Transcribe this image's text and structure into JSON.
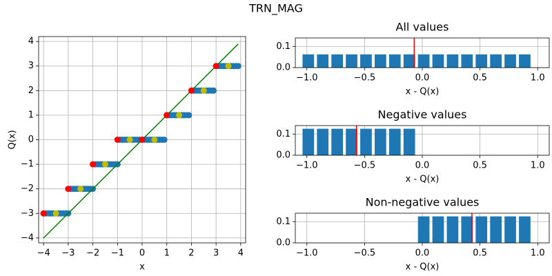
{
  "title": "TRN_MAG",
  "chart_data": [
    {
      "type": "scatter",
      "xlabel": "x",
      "ylabel": "Q(x)",
      "grid": true,
      "xlim": [
        -4.2,
        4.2
      ],
      "ylim": [
        -4.2,
        4.2
      ],
      "xticks": [
        {
          "value": -4,
          "label": "−4"
        },
        {
          "value": -3,
          "label": "−3"
        },
        {
          "value": -2,
          "label": "−2"
        },
        {
          "value": -1,
          "label": "−1"
        },
        0,
        1,
        2,
        3,
        4
      ],
      "yticks": [
        {
          "value": -4,
          "label": "−4"
        },
        {
          "value": -3,
          "label": "−3"
        },
        {
          "value": -2,
          "label": "−2"
        },
        {
          "value": -1,
          "label": "−1"
        },
        0,
        1,
        2,
        3,
        4
      ],
      "series": [
        {
          "style": "marker",
          "color": "#1f77b4",
          "x": [
            -4.0,
            -3.9,
            -3.8,
            -3.7,
            -3.6,
            -3.5,
            -3.4,
            -3.3,
            -3.2,
            -3.1,
            -3.0,
            -2.9,
            -2.8,
            -2.7,
            -2.6,
            -2.5,
            -2.4,
            -2.3,
            -2.2,
            -2.1,
            -2.0,
            -1.9,
            -1.8,
            -1.7,
            -1.6,
            -1.5,
            -1.4,
            -1.3,
            -1.2,
            -1.1,
            -1.0,
            -0.9,
            -0.8,
            -0.7,
            -0.6,
            -0.5,
            -0.4,
            -0.3,
            -0.2,
            -0.1,
            0.0,
            0.1,
            0.2,
            0.3,
            0.4,
            0.5,
            0.6,
            0.7,
            0.8,
            0.9,
            1.0,
            1.1,
            1.2,
            1.3,
            1.4,
            1.5,
            1.6,
            1.7,
            1.8,
            1.9,
            2.0,
            2.1,
            2.2,
            2.3,
            2.4,
            2.5,
            2.6,
            2.7,
            2.8,
            2.9,
            3.0,
            3.1,
            3.2,
            3.3,
            3.4,
            3.5,
            3.6,
            3.7,
            3.8,
            3.9
          ],
          "values": [
            -3,
            -3,
            -3,
            -3,
            -3,
            -3,
            -3,
            -3,
            -3,
            -3,
            -3,
            -2,
            -2,
            -2,
            -2,
            -2,
            -2,
            -2,
            -2,
            -2,
            -2,
            -1,
            -1,
            -1,
            -1,
            -1,
            -1,
            -1,
            -1,
            -1,
            -1,
            0,
            0,
            0,
            0,
            0,
            0,
            0,
            0,
            0,
            0,
            0,
            0,
            0,
            0,
            0,
            0,
            0,
            0,
            0,
            1,
            1,
            1,
            1,
            1,
            1,
            1,
            1,
            1,
            1,
            2,
            2,
            2,
            2,
            2,
            2,
            2,
            2,
            2,
            2,
            3,
            3,
            3,
            3,
            3,
            3,
            3,
            3,
            3,
            3
          ]
        },
        {
          "style": "line",
          "color": "#008000",
          "x": [
            -4,
            3.9
          ],
          "values": [
            -4,
            3.9
          ]
        },
        {
          "style": "marker",
          "color": "#ff0000",
          "x": [
            -4,
            -3,
            -2,
            -1,
            0,
            1,
            2,
            3
          ],
          "values": [
            -3,
            -2,
            -1,
            0,
            0,
            1,
            2,
            3
          ]
        },
        {
          "style": "marker",
          "color": "#bfbf00",
          "x": [
            -3.5,
            -2.5,
            -1.5,
            -0.5,
            0.5,
            1.5,
            2.5,
            3.5
          ],
          "values": [
            -3,
            -2,
            -1,
            0,
            0,
            1,
            2,
            3
          ]
        }
      ]
    },
    {
      "type": "histogram",
      "title": "All values",
      "xlabel": "x - Q(x)",
      "grid": true,
      "color": "#1f77b4",
      "rwidth": 0.8,
      "xlim": [
        -1.1,
        1.1
      ],
      "ylim": [
        0,
        0.14
      ],
      "xticks": [
        {
          "value": -1,
          "label": "−1.0"
        },
        {
          "value": -0.5,
          "label": "−0.5"
        },
        {
          "value": 0,
          "label": "0.0"
        },
        0.5,
        {
          "value": 1,
          "label": "1.0"
        }
      ],
      "yticks": [
        {
          "value": 0,
          "label": "0.0"
        },
        0.1
      ],
      "bins": [
        -1.05,
        -0.925,
        -0.8,
        -0.675,
        -0.55,
        -0.425,
        -0.3,
        -0.175,
        -0.05,
        0.075,
        0.2,
        0.325,
        0.45,
        0.575,
        0.7,
        0.825,
        0.95
      ],
      "values": [
        0.0625,
        0.0625,
        0.0625,
        0.0625,
        0.0625,
        0.0625,
        0.0625,
        0.0625,
        0.0625,
        0.0625,
        0.0625,
        0.0625,
        0.0625,
        0.0625,
        0.0625,
        0.0625
      ],
      "vline": -0.07,
      "vline_color": "#ff0000"
    },
    {
      "type": "histogram",
      "title": "Negative values",
      "xlabel": "x - Q(x)",
      "grid": true,
      "color": "#1f77b4",
      "rwidth": 0.8,
      "xlim": [
        -1.1,
        1.1
      ],
      "ylim": [
        0,
        0.14
      ],
      "xticks": [
        {
          "value": -1,
          "label": "−1.0"
        },
        {
          "value": -0.5,
          "label": "−0.5"
        },
        {
          "value": 0,
          "label": "0.0"
        },
        0.5,
        {
          "value": 1,
          "label": "1.0"
        }
      ],
      "yticks": [
        {
          "value": 0,
          "label": "0.0"
        },
        0.1
      ],
      "bins": [
        -1.05,
        -0.925,
        -0.8,
        -0.675,
        -0.55,
        -0.425,
        -0.3,
        -0.175,
        -0.05
      ],
      "values": [
        0.125,
        0.125,
        0.125,
        0.125,
        0.125,
        0.125,
        0.125,
        0.125
      ],
      "vline": -0.57,
      "vline_color": "#ff0000"
    },
    {
      "type": "histogram",
      "title": "Non-negative values",
      "xlabel": "x - Q(x)",
      "grid": true,
      "color": "#1f77b4",
      "rwidth": 0.8,
      "xlim": [
        -1.1,
        1.1
      ],
      "ylim": [
        0,
        0.14
      ],
      "xticks": [
        {
          "value": -1,
          "label": "−1.0"
        },
        {
          "value": -0.5,
          "label": "−0.5"
        },
        {
          "value": 0,
          "label": "0.0"
        },
        0.5,
        {
          "value": 1,
          "label": "1.0"
        }
      ],
      "yticks": [
        {
          "value": 0,
          "label": "0.0"
        },
        0.1
      ],
      "bins": [
        -0.05,
        0.075,
        0.2,
        0.325,
        0.45,
        0.575,
        0.7,
        0.825,
        0.95
      ],
      "values": [
        0.125,
        0.125,
        0.125,
        0.125,
        0.125,
        0.125,
        0.125,
        0.125
      ],
      "vline": 0.43,
      "vline_color": "#ff0000"
    }
  ]
}
